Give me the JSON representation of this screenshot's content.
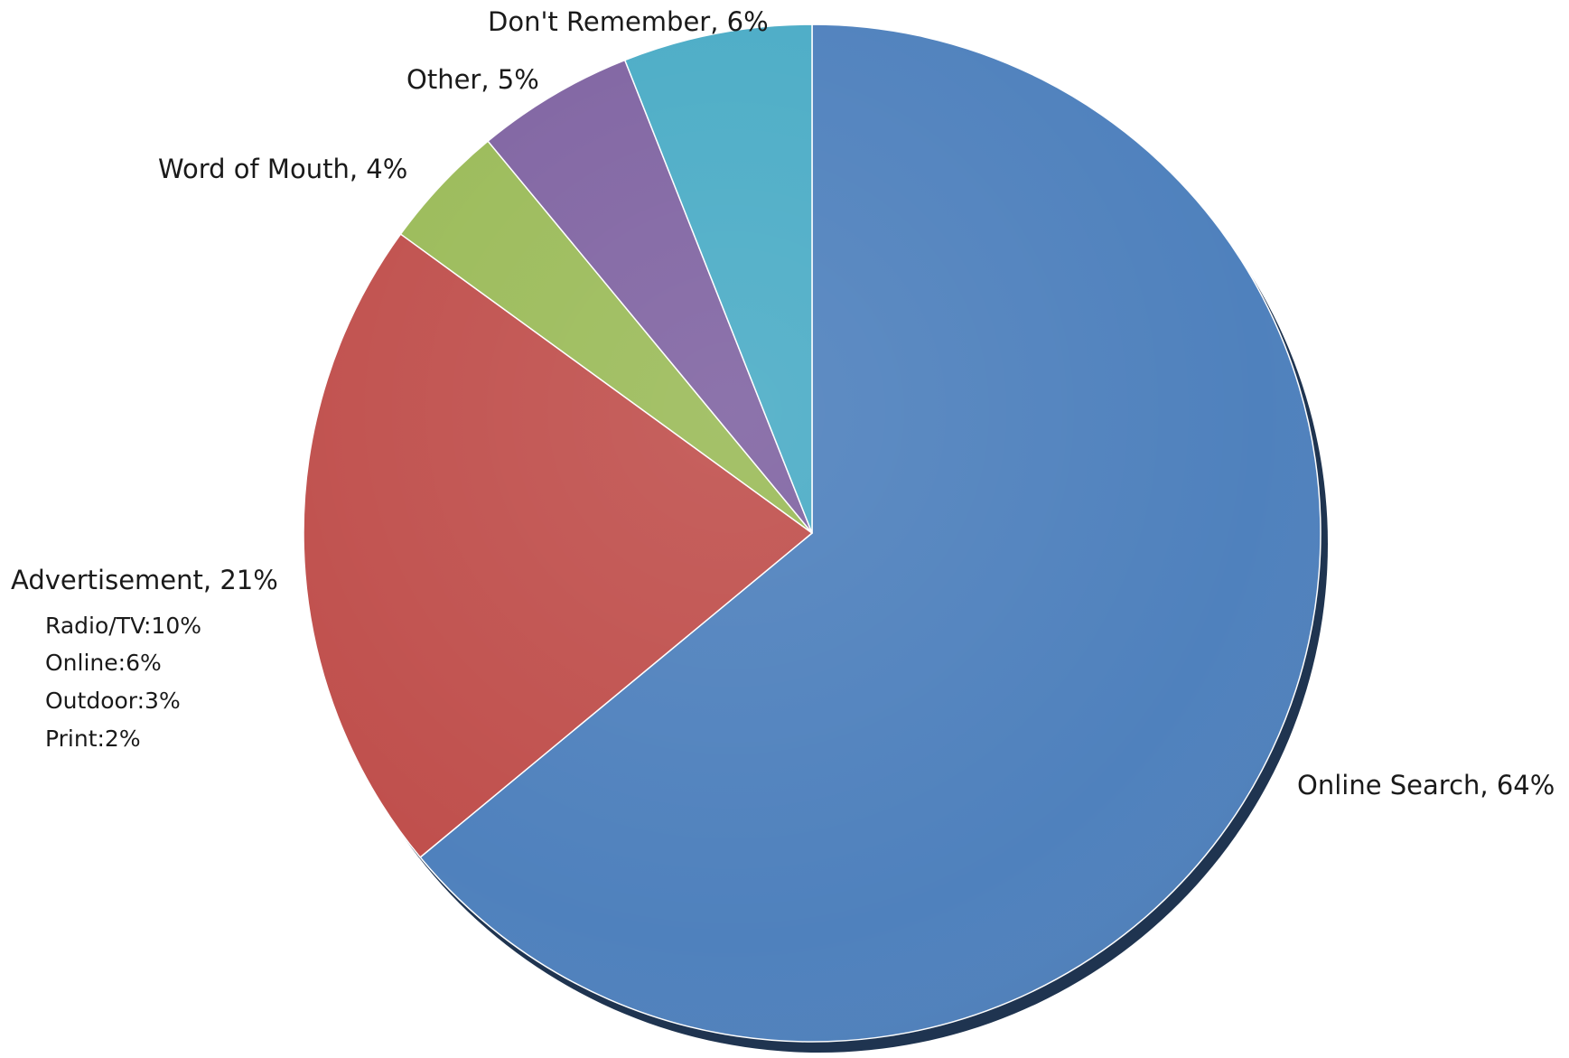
{
  "chart_data": {
    "type": "pie",
    "title": "",
    "slices": [
      {
        "label": "Online Search",
        "value": 64,
        "text": "Online Search, 64%",
        "color": "#4f81bd"
      },
      {
        "label": "Advertisement",
        "value": 21,
        "text": "Advertisement, 21%",
        "color": "#c0504d",
        "breakdown": [
          {
            "label": "Radio/TV",
            "value": 10,
            "text": "Radio/TV:10%"
          },
          {
            "label": "Online",
            "value": 6,
            "text": "Online:6%"
          },
          {
            "label": "Outdoor",
            "value": 3,
            "text": "Outdoor:3%"
          },
          {
            "label": "Print",
            "value": 2,
            "text": "Print:2%"
          }
        ]
      },
      {
        "label": "Word of Mouth",
        "value": 4,
        "text": "Word of Mouth,  4%",
        "color": "#9bbb59"
      },
      {
        "label": "Other",
        "value": 5,
        "text": "Other, 5%",
        "color": "#8064a2"
      },
      {
        "label": "Don't Remember",
        "value": 6,
        "text": "Don't Remember, 6%",
        "color": "#4bacc6"
      }
    ],
    "start_angle": "12 o'clock",
    "direction": "clockwise",
    "legend": "none",
    "labels": "outside"
  }
}
